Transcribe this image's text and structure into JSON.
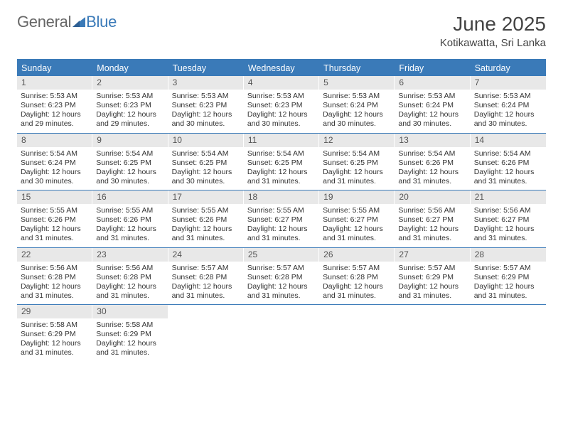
{
  "logo": {
    "part1": "General",
    "part2": "Blue"
  },
  "title": "June 2025",
  "location": "Kotikawatta, Sri Lanka",
  "day_names": [
    "Sunday",
    "Monday",
    "Tuesday",
    "Wednesday",
    "Thursday",
    "Friday",
    "Saturday"
  ],
  "colors": {
    "header_blue": "#3a7ab8",
    "daynum_bg": "#e8e8e8",
    "text": "#333333",
    "title_text": "#444444",
    "logo_gray": "#666666",
    "logo_blue": "#3a7ab8"
  },
  "typography": {
    "month_title_fontsize": 28,
    "location_fontsize": 15,
    "dayheader_fontsize": 12.5,
    "daynum_fontsize": 12,
    "body_fontsize": 10.5
  },
  "weeks": [
    [
      {
        "n": "1",
        "sr": "Sunrise: 5:53 AM",
        "ss": "Sunset: 6:23 PM",
        "d1": "Daylight: 12 hours",
        "d2": "and 29 minutes."
      },
      {
        "n": "2",
        "sr": "Sunrise: 5:53 AM",
        "ss": "Sunset: 6:23 PM",
        "d1": "Daylight: 12 hours",
        "d2": "and 29 minutes."
      },
      {
        "n": "3",
        "sr": "Sunrise: 5:53 AM",
        "ss": "Sunset: 6:23 PM",
        "d1": "Daylight: 12 hours",
        "d2": "and 30 minutes."
      },
      {
        "n": "4",
        "sr": "Sunrise: 5:53 AM",
        "ss": "Sunset: 6:23 PM",
        "d1": "Daylight: 12 hours",
        "d2": "and 30 minutes."
      },
      {
        "n": "5",
        "sr": "Sunrise: 5:53 AM",
        "ss": "Sunset: 6:24 PM",
        "d1": "Daylight: 12 hours",
        "d2": "and 30 minutes."
      },
      {
        "n": "6",
        "sr": "Sunrise: 5:53 AM",
        "ss": "Sunset: 6:24 PM",
        "d1": "Daylight: 12 hours",
        "d2": "and 30 minutes."
      },
      {
        "n": "7",
        "sr": "Sunrise: 5:53 AM",
        "ss": "Sunset: 6:24 PM",
        "d1": "Daylight: 12 hours",
        "d2": "and 30 minutes."
      }
    ],
    [
      {
        "n": "8",
        "sr": "Sunrise: 5:54 AM",
        "ss": "Sunset: 6:24 PM",
        "d1": "Daylight: 12 hours",
        "d2": "and 30 minutes."
      },
      {
        "n": "9",
        "sr": "Sunrise: 5:54 AM",
        "ss": "Sunset: 6:25 PM",
        "d1": "Daylight: 12 hours",
        "d2": "and 30 minutes."
      },
      {
        "n": "10",
        "sr": "Sunrise: 5:54 AM",
        "ss": "Sunset: 6:25 PM",
        "d1": "Daylight: 12 hours",
        "d2": "and 30 minutes."
      },
      {
        "n": "11",
        "sr": "Sunrise: 5:54 AM",
        "ss": "Sunset: 6:25 PM",
        "d1": "Daylight: 12 hours",
        "d2": "and 31 minutes."
      },
      {
        "n": "12",
        "sr": "Sunrise: 5:54 AM",
        "ss": "Sunset: 6:25 PM",
        "d1": "Daylight: 12 hours",
        "d2": "and 31 minutes."
      },
      {
        "n": "13",
        "sr": "Sunrise: 5:54 AM",
        "ss": "Sunset: 6:26 PM",
        "d1": "Daylight: 12 hours",
        "d2": "and 31 minutes."
      },
      {
        "n": "14",
        "sr": "Sunrise: 5:54 AM",
        "ss": "Sunset: 6:26 PM",
        "d1": "Daylight: 12 hours",
        "d2": "and 31 minutes."
      }
    ],
    [
      {
        "n": "15",
        "sr": "Sunrise: 5:55 AM",
        "ss": "Sunset: 6:26 PM",
        "d1": "Daylight: 12 hours",
        "d2": "and 31 minutes."
      },
      {
        "n": "16",
        "sr": "Sunrise: 5:55 AM",
        "ss": "Sunset: 6:26 PM",
        "d1": "Daylight: 12 hours",
        "d2": "and 31 minutes."
      },
      {
        "n": "17",
        "sr": "Sunrise: 5:55 AM",
        "ss": "Sunset: 6:26 PM",
        "d1": "Daylight: 12 hours",
        "d2": "and 31 minutes."
      },
      {
        "n": "18",
        "sr": "Sunrise: 5:55 AM",
        "ss": "Sunset: 6:27 PM",
        "d1": "Daylight: 12 hours",
        "d2": "and 31 minutes."
      },
      {
        "n": "19",
        "sr": "Sunrise: 5:55 AM",
        "ss": "Sunset: 6:27 PM",
        "d1": "Daylight: 12 hours",
        "d2": "and 31 minutes."
      },
      {
        "n": "20",
        "sr": "Sunrise: 5:56 AM",
        "ss": "Sunset: 6:27 PM",
        "d1": "Daylight: 12 hours",
        "d2": "and 31 minutes."
      },
      {
        "n": "21",
        "sr": "Sunrise: 5:56 AM",
        "ss": "Sunset: 6:27 PM",
        "d1": "Daylight: 12 hours",
        "d2": "and 31 minutes."
      }
    ],
    [
      {
        "n": "22",
        "sr": "Sunrise: 5:56 AM",
        "ss": "Sunset: 6:28 PM",
        "d1": "Daylight: 12 hours",
        "d2": "and 31 minutes."
      },
      {
        "n": "23",
        "sr": "Sunrise: 5:56 AM",
        "ss": "Sunset: 6:28 PM",
        "d1": "Daylight: 12 hours",
        "d2": "and 31 minutes."
      },
      {
        "n": "24",
        "sr": "Sunrise: 5:57 AM",
        "ss": "Sunset: 6:28 PM",
        "d1": "Daylight: 12 hours",
        "d2": "and 31 minutes."
      },
      {
        "n": "25",
        "sr": "Sunrise: 5:57 AM",
        "ss": "Sunset: 6:28 PM",
        "d1": "Daylight: 12 hours",
        "d2": "and 31 minutes."
      },
      {
        "n": "26",
        "sr": "Sunrise: 5:57 AM",
        "ss": "Sunset: 6:28 PM",
        "d1": "Daylight: 12 hours",
        "d2": "and 31 minutes."
      },
      {
        "n": "27",
        "sr": "Sunrise: 5:57 AM",
        "ss": "Sunset: 6:29 PM",
        "d1": "Daylight: 12 hours",
        "d2": "and 31 minutes."
      },
      {
        "n": "28",
        "sr": "Sunrise: 5:57 AM",
        "ss": "Sunset: 6:29 PM",
        "d1": "Daylight: 12 hours",
        "d2": "and 31 minutes."
      }
    ],
    [
      {
        "n": "29",
        "sr": "Sunrise: 5:58 AM",
        "ss": "Sunset: 6:29 PM",
        "d1": "Daylight: 12 hours",
        "d2": "and 31 minutes."
      },
      {
        "n": "30",
        "sr": "Sunrise: 5:58 AM",
        "ss": "Sunset: 6:29 PM",
        "d1": "Daylight: 12 hours",
        "d2": "and 31 minutes."
      },
      {
        "empty": true
      },
      {
        "empty": true
      },
      {
        "empty": true
      },
      {
        "empty": true
      },
      {
        "empty": true
      }
    ]
  ]
}
